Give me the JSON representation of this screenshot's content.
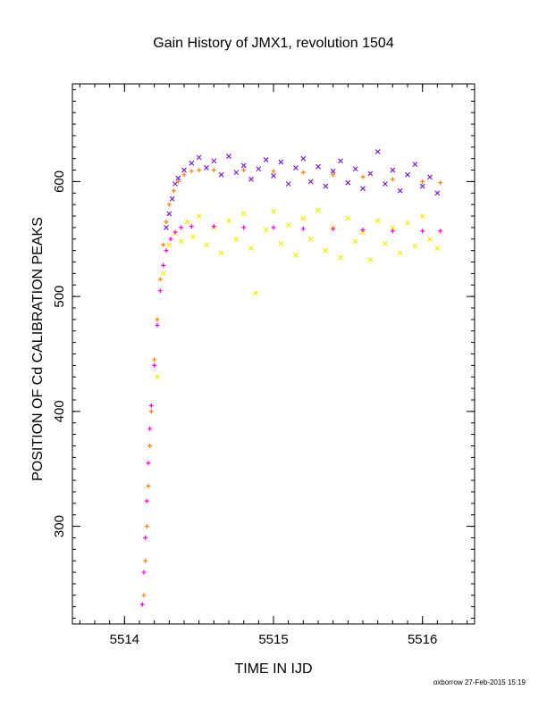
{
  "chart_data": {
    "type": "scatter",
    "title": "Gain History of JMX1, revolution 1504",
    "xlabel": "TIME IN IJD",
    "ylabel": "POSITION OF Cd CALIBRATION PEAKS",
    "xlim": [
      5513.65,
      5516.35
    ],
    "ylim": [
      215,
      685
    ],
    "x_ticks": [
      5514,
      5515,
      5516
    ],
    "y_ticks": [
      300,
      400,
      500,
      600
    ],
    "x_minor_step": 0.1,
    "y_minor_step": 10,
    "grid": false,
    "series": [
      {
        "marker": "x",
        "color": "#7a1fd6",
        "points": [
          [
            5514.28,
            560
          ],
          [
            5514.3,
            572
          ],
          [
            5514.32,
            585
          ],
          [
            5514.34,
            598
          ],
          [
            5514.36,
            603
          ],
          [
            5514.4,
            610
          ],
          [
            5514.45,
            616
          ],
          [
            5514.5,
            621
          ],
          [
            5514.55,
            612
          ],
          [
            5514.6,
            618
          ],
          [
            5514.65,
            606
          ],
          [
            5514.7,
            622
          ],
          [
            5514.75,
            608
          ],
          [
            5514.8,
            614
          ],
          [
            5514.85,
            602
          ],
          [
            5514.9,
            611
          ],
          [
            5514.95,
            619
          ],
          [
            5515.0,
            605
          ],
          [
            5515.05,
            617
          ],
          [
            5515.1,
            598
          ],
          [
            5515.15,
            612
          ],
          [
            5515.2,
            620
          ],
          [
            5515.25,
            600
          ],
          [
            5515.3,
            613
          ],
          [
            5515.35,
            596
          ],
          [
            5515.4,
            609
          ],
          [
            5515.45,
            618
          ],
          [
            5515.5,
            599
          ],
          [
            5515.55,
            611
          ],
          [
            5515.6,
            594
          ],
          [
            5515.65,
            607
          ],
          [
            5515.7,
            626
          ],
          [
            5515.75,
            598
          ],
          [
            5515.8,
            610
          ],
          [
            5515.85,
            592
          ],
          [
            5515.9,
            606
          ],
          [
            5515.95,
            615
          ],
          [
            5516.0,
            596
          ],
          [
            5516.05,
            604
          ],
          [
            5516.1,
            590
          ]
        ]
      },
      {
        "marker": "x",
        "color": "#f0f000",
        "points": [
          [
            5514.22,
            430
          ],
          [
            5514.26,
            520
          ],
          [
            5514.3,
            545
          ],
          [
            5514.34,
            555
          ],
          [
            5514.38,
            548
          ],
          [
            5514.42,
            565
          ],
          [
            5514.46,
            552
          ],
          [
            5514.5,
            570
          ],
          [
            5514.55,
            545
          ],
          [
            5514.6,
            560
          ],
          [
            5514.65,
            538
          ],
          [
            5514.7,
            566
          ],
          [
            5514.75,
            550
          ],
          [
            5514.8,
            572
          ],
          [
            5514.85,
            542
          ],
          [
            5514.88,
            503
          ],
          [
            5514.95,
            558
          ],
          [
            5515.0,
            574
          ],
          [
            5515.05,
            546
          ],
          [
            5515.1,
            562
          ],
          [
            5515.15,
            536
          ],
          [
            5515.2,
            568
          ],
          [
            5515.25,
            550
          ],
          [
            5515.3,
            575
          ],
          [
            5515.35,
            540
          ],
          [
            5515.4,
            560
          ],
          [
            5515.45,
            534
          ],
          [
            5515.5,
            568
          ],
          [
            5515.55,
            548
          ],
          [
            5515.6,
            556
          ],
          [
            5515.65,
            532
          ],
          [
            5515.7,
            566
          ],
          [
            5515.75,
            546
          ],
          [
            5515.8,
            560
          ],
          [
            5515.85,
            538
          ],
          [
            5515.9,
            564
          ],
          [
            5515.95,
            544
          ],
          [
            5516.0,
            570
          ],
          [
            5516.05,
            550
          ],
          [
            5516.1,
            542
          ]
        ]
      },
      {
        "marker": "+",
        "color": "#ff8000",
        "points": [
          [
            5514.13,
            240
          ],
          [
            5514.14,
            270
          ],
          [
            5514.15,
            300
          ],
          [
            5514.16,
            335
          ],
          [
            5514.17,
            370
          ],
          [
            5514.18,
            400
          ],
          [
            5514.2,
            445
          ],
          [
            5514.22,
            480
          ],
          [
            5514.24,
            515
          ],
          [
            5514.26,
            545
          ],
          [
            5514.28,
            565
          ],
          [
            5514.3,
            580
          ],
          [
            5514.33,
            592
          ],
          [
            5514.36,
            600
          ],
          [
            5514.4,
            606
          ],
          [
            5514.45,
            609
          ],
          [
            5514.5,
            610
          ],
          [
            5514.6,
            610
          ],
          [
            5514.8,
            610
          ],
          [
            5515.0,
            609
          ],
          [
            5515.2,
            608
          ],
          [
            5515.4,
            606
          ],
          [
            5515.6,
            604
          ],
          [
            5515.8,
            602
          ],
          [
            5516.0,
            600
          ],
          [
            5516.12,
            599
          ]
        ]
      },
      {
        "marker": "+",
        "color": "#ff00e6",
        "points": [
          [
            5514.12,
            232
          ],
          [
            5514.13,
            260
          ],
          [
            5514.14,
            290
          ],
          [
            5514.15,
            322
          ],
          [
            5514.16,
            355
          ],
          [
            5514.17,
            385
          ],
          [
            5514.18,
            405
          ],
          [
            5514.2,
            440
          ],
          [
            5514.22,
            475
          ],
          [
            5514.24,
            505
          ],
          [
            5514.26,
            527
          ],
          [
            5514.28,
            540
          ],
          [
            5514.31,
            550
          ],
          [
            5514.34,
            556
          ],
          [
            5514.38,
            560
          ],
          [
            5514.45,
            561
          ],
          [
            5514.6,
            561
          ],
          [
            5514.8,
            560
          ],
          [
            5515.0,
            560
          ],
          [
            5515.2,
            559
          ],
          [
            5515.4,
            559
          ],
          [
            5515.6,
            558
          ],
          [
            5515.8,
            557
          ],
          [
            5516.0,
            557
          ],
          [
            5516.12,
            557
          ]
        ]
      }
    ]
  },
  "footer": "oxborrow 27-Feb-2015 15:19"
}
